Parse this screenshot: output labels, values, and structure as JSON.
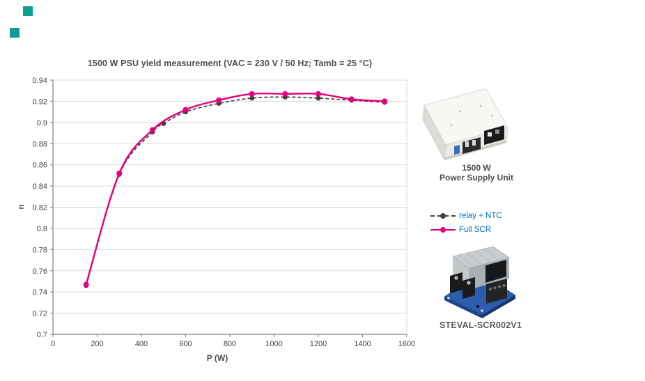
{
  "decor": {
    "accent_square_color": "#0e9e8e"
  },
  "chart_data": {
    "type": "line",
    "title": "1500 W PSU yield measurement (VAC = 230 V / 50 Hz; Tamb = 25 °C)",
    "xlabel": "P (W)",
    "ylabel": "n",
    "xlim": [
      0,
      1600
    ],
    "ylim": [
      0.7,
      0.94
    ],
    "x_ticks": [
      0,
      200,
      400,
      600,
      800,
      1000,
      1200,
      1400,
      1600
    ],
    "y_ticks": [
      "0.94",
      "0.92",
      "0.9",
      "0.88",
      "0.86",
      "0.84",
      "0.82",
      "0.8",
      "0.78",
      "0.76",
      "0.74",
      "0.72",
      "0.7"
    ],
    "grid": true,
    "legend_position": "right-outside",
    "legend_text_color": "#0070c0",
    "gridline_color": "#d9d9d9",
    "axis_color": "#7f7f7f",
    "tick_label_color": "#404040",
    "series": [
      {
        "name": "relay + NTC",
        "style": "dashed",
        "color": "#3f3f3f",
        "marker": "circle",
        "x": [
          150,
          300,
          450,
          500,
          600,
          750,
          900,
          1050,
          1200,
          1350,
          1500
        ],
        "values": [
          0.746,
          0.851,
          0.891,
          0.899,
          0.91,
          0.918,
          0.923,
          0.924,
          0.923,
          0.921,
          0.919
        ]
      },
      {
        "name": "Full SCR",
        "style": "solid",
        "color": "#e6007e",
        "marker": "circle",
        "x": [
          150,
          300,
          450,
          600,
          750,
          900,
          1050,
          1200,
          1350,
          1500
        ],
        "values": [
          0.747,
          0.852,
          0.893,
          0.912,
          0.921,
          0.927,
          0.927,
          0.927,
          0.922,
          0.92
        ]
      }
    ]
  },
  "psu": {
    "caption_line1": "1500 W",
    "caption_line2": "Power Supply Unit"
  },
  "board": {
    "caption": "STEVAL-SCR002V1"
  }
}
